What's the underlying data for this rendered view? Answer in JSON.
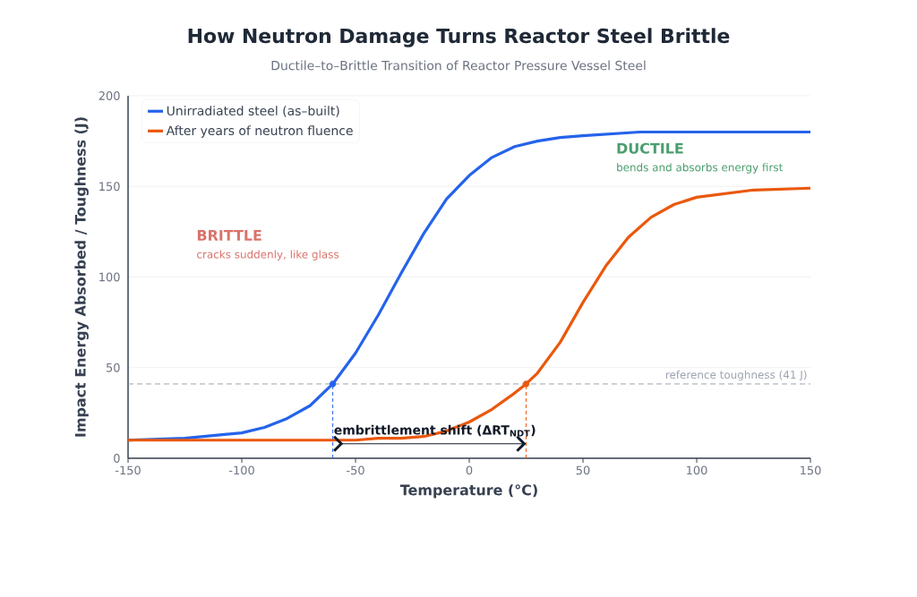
{
  "chart_data": {
    "type": "line",
    "title": "How Neutron Damage Turns Reactor Steel Brittle",
    "subtitle": "Ductile–to–Brittle Transition of Reactor Pressure Vessel Steel",
    "xlabel": "Temperature (°C)",
    "ylabel": "Impact Energy Absorbed / Toughness (J)",
    "xlim": [
      -150,
      150
    ],
    "ylim": [
      0,
      200
    ],
    "xticks": [
      -150,
      -100,
      -50,
      0,
      50,
      100,
      150
    ],
    "yticks": [
      0,
      50,
      100,
      150,
      200
    ],
    "grid": "y",
    "legend": "top left",
    "series": [
      {
        "name": "Unirradiated steel (as–built)",
        "color": "#2563eb",
        "x": [
          -150,
          -125,
          -100,
          -90,
          -80,
          -70,
          -60,
          -50,
          -40,
          -30,
          -20,
          -10,
          0,
          10,
          20,
          30,
          40,
          50,
          75,
          100,
          125,
          150
        ],
        "values": [
          10,
          11,
          14,
          17,
          22,
          29,
          41,
          58,
          79,
          102,
          124,
          143,
          156,
          166,
          172,
          175,
          177,
          178,
          180,
          180,
          180,
          180
        ]
      },
      {
        "name": "After years of neutron fluence",
        "color": "#ea580c",
        "x": [
          -150,
          -100,
          -50,
          -40,
          -30,
          -20,
          -10,
          0,
          10,
          20,
          25,
          30,
          40,
          50,
          60,
          70,
          80,
          90,
          100,
          125,
          150
        ],
        "values": [
          10,
          10,
          10,
          11,
          11,
          12,
          15,
          20,
          27,
          36,
          41,
          47,
          64,
          86,
          106,
          122,
          133,
          140,
          144,
          148,
          149
        ]
      },
      {
        "type": "line",
        "color": "#2563eb",
        "line_style": "dashed",
        "x": [
          -60,
          -60
        ],
        "values": [
          0,
          41
        ]
      },
      {
        "type": "line",
        "color": "#ea580c",
        "line_style": "dashed",
        "x": [
          25,
          25
        ],
        "values": [
          0,
          41
        ]
      },
      {
        "type": "scatter",
        "marker": "circle",
        "x": [
          -60,
          25
        ],
        "values": [
          41,
          41
        ],
        "colors": [
          "#2563eb",
          "#ea580c"
        ]
      }
    ],
    "ref_lines": [
      {
        "axis": "y",
        "value": 41,
        "label": "reference toughness (41 J)",
        "color": "#9ca3af",
        "line_style": "dashed"
      }
    ],
    "annotations": [
      "BRITTLE",
      "cracks suddenly, like glass",
      "DUCTILE",
      "bends and absorbs energy first",
      {
        "text": "embrittlement shift (ΔRT$_{NDT}$)",
        "x": -60,
        "y": 8
      }
    ]
  }
}
